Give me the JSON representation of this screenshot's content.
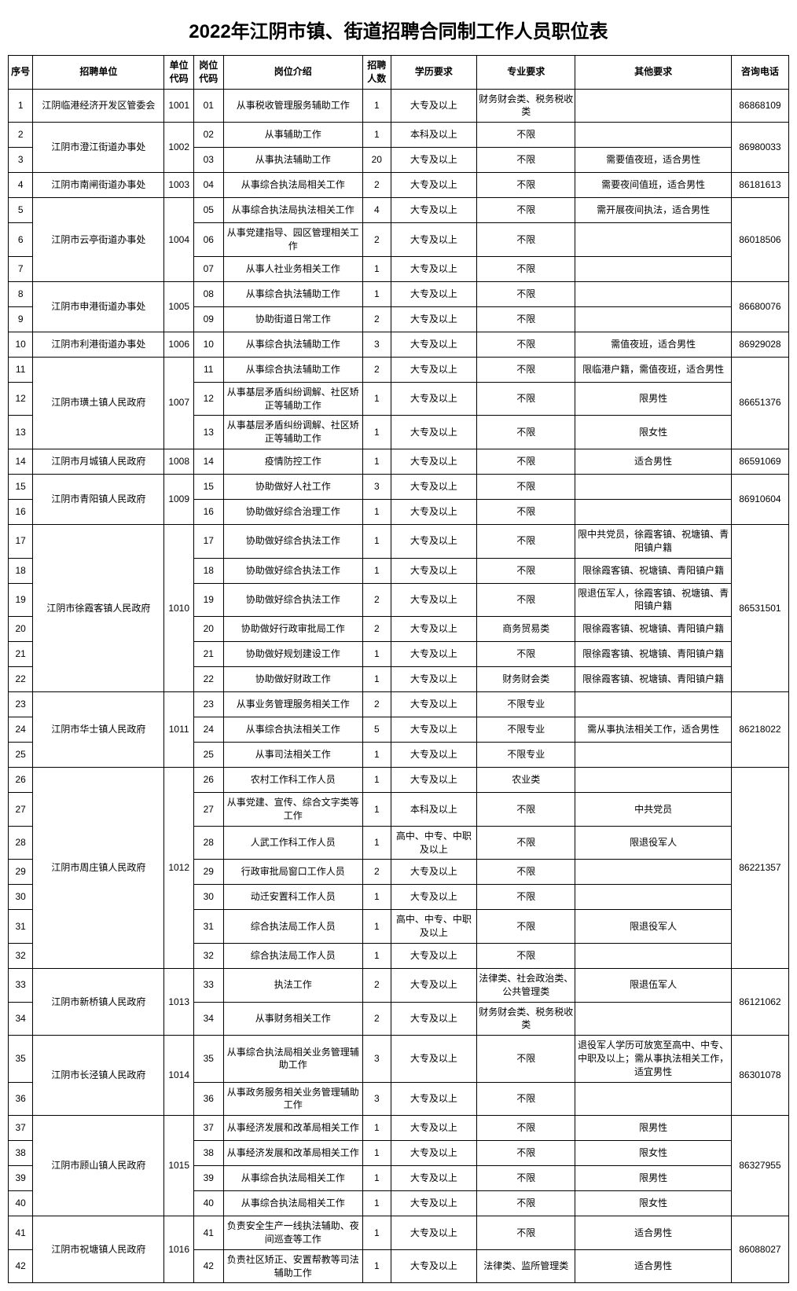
{
  "title": "2022年江阴市镇、街道招聘合同制工作人员职位表",
  "columns": [
    "序号",
    "招聘单位",
    "单位代码",
    "岗位代码",
    "岗位介绍",
    "招聘人数",
    "学历要求",
    "专业要求",
    "其他要求",
    "咨询电话"
  ],
  "rows": [
    {
      "seq": "1",
      "pcode": "01",
      "desc": "从事税收管理服务辅助工作",
      "num": "1",
      "edu": "大专及以上",
      "major": "财务财会类、税务税收类",
      "other": "",
      "unit": "江阴临港经济开发区管委会",
      "ucode": "1001",
      "urs": 1,
      "phone": "86868109",
      "prs": 1
    },
    {
      "seq": "2",
      "pcode": "02",
      "desc": "从事辅助工作",
      "num": "1",
      "edu": "本科及以上",
      "major": "不限",
      "other": "",
      "unit": "江阴市澄江街道办事处",
      "ucode": "1002",
      "urs": 2,
      "phone": "86980033",
      "prs": 2
    },
    {
      "seq": "3",
      "pcode": "03",
      "desc": "从事执法辅助工作",
      "num": "20",
      "edu": "大专及以上",
      "major": "不限",
      "other": "需要值夜班，适合男性"
    },
    {
      "seq": "4",
      "pcode": "04",
      "desc": "从事综合执法局相关工作",
      "num": "2",
      "edu": "大专及以上",
      "major": "不限",
      "other": "需要夜间值班，适合男性",
      "unit": "江阴市南闸街道办事处",
      "ucode": "1003",
      "urs": 1,
      "phone": "86181613",
      "prs": 1
    },
    {
      "seq": "5",
      "pcode": "05",
      "desc": "从事综合执法局执法相关工作",
      "num": "4",
      "edu": "大专及以上",
      "major": "不限",
      "other": "需开展夜间执法，适合男性",
      "unit": "江阴市云亭街道办事处",
      "ucode": "1004",
      "urs": 3,
      "phone": "86018506",
      "prs": 3
    },
    {
      "seq": "6",
      "pcode": "06",
      "desc": "从事党建指导、园区管理相关工作",
      "num": "2",
      "edu": "大专及以上",
      "major": "不限",
      "other": ""
    },
    {
      "seq": "7",
      "pcode": "07",
      "desc": "从事人社业务相关工作",
      "num": "1",
      "edu": "大专及以上",
      "major": "不限",
      "other": ""
    },
    {
      "seq": "8",
      "pcode": "08",
      "desc": "从事综合执法辅助工作",
      "num": "1",
      "edu": "大专及以上",
      "major": "不限",
      "other": "",
      "unit": "江阴市申港街道办事处",
      "ucode": "1005",
      "urs": 2,
      "phone": "86680076",
      "prs": 2
    },
    {
      "seq": "9",
      "pcode": "09",
      "desc": "协助街道日常工作",
      "num": "2",
      "edu": "大专及以上",
      "major": "不限",
      "other": ""
    },
    {
      "seq": "10",
      "pcode": "10",
      "desc": "从事综合执法辅助工作",
      "num": "3",
      "edu": "大专及以上",
      "major": "不限",
      "other": "需值夜班，适合男性",
      "unit": "江阴市利港街道办事处",
      "ucode": "1006",
      "urs": 1,
      "phone": "86929028",
      "prs": 1
    },
    {
      "seq": "11",
      "pcode": "11",
      "desc": "从事综合执法辅助工作",
      "num": "2",
      "edu": "大专及以上",
      "major": "不限",
      "other": "限临港户籍，需值夜班，适合男性",
      "unit": "江阴市璜土镇人民政府",
      "ucode": "1007",
      "urs": 3,
      "phone": "86651376",
      "prs": 3
    },
    {
      "seq": "12",
      "pcode": "12",
      "desc": "从事基层矛盾纠纷调解、社区矫正等辅助工作",
      "num": "1",
      "edu": "大专及以上",
      "major": "不限",
      "other": "限男性"
    },
    {
      "seq": "13",
      "pcode": "13",
      "desc": "从事基层矛盾纠纷调解、社区矫正等辅助工作",
      "num": "1",
      "edu": "大专及以上",
      "major": "不限",
      "other": "限女性"
    },
    {
      "seq": "14",
      "pcode": "14",
      "desc": "疫情防控工作",
      "num": "1",
      "edu": "大专及以上",
      "major": "不限",
      "other": "适合男性",
      "unit": "江阴市月城镇人民政府",
      "ucode": "1008",
      "urs": 1,
      "phone": "86591069",
      "prs": 1
    },
    {
      "seq": "15",
      "pcode": "15",
      "desc": "协助做好人社工作",
      "num": "3",
      "edu": "大专及以上",
      "major": "不限",
      "other": "",
      "unit": "江阴市青阳镇人民政府",
      "ucode": "1009",
      "urs": 2,
      "phone": "86910604",
      "prs": 2
    },
    {
      "seq": "16",
      "pcode": "16",
      "desc": "协助做好综合治理工作",
      "num": "1",
      "edu": "大专及以上",
      "major": "不限",
      "other": ""
    },
    {
      "seq": "17",
      "pcode": "17",
      "desc": "协助做好综合执法工作",
      "num": "1",
      "edu": "大专及以上",
      "major": "不限",
      "other": "限中共党员，徐霞客镇、祝塘镇、青阳镇户籍",
      "unit": "江阴市徐霞客镇人民政府",
      "ucode": "1010",
      "urs": 6,
      "phone": "86531501",
      "prs": 6
    },
    {
      "seq": "18",
      "pcode": "18",
      "desc": "协助做好综合执法工作",
      "num": "1",
      "edu": "大专及以上",
      "major": "不限",
      "other": "限徐霞客镇、祝塘镇、青阳镇户籍"
    },
    {
      "seq": "19",
      "pcode": "19",
      "desc": "协助做好综合执法工作",
      "num": "2",
      "edu": "大专及以上",
      "major": "不限",
      "other": "限退伍军人，徐霞客镇、祝塘镇、青阳镇户籍"
    },
    {
      "seq": "20",
      "pcode": "20",
      "desc": "协助做好行政审批局工作",
      "num": "2",
      "edu": "大专及以上",
      "major": "商务贸易类",
      "other": "限徐霞客镇、祝塘镇、青阳镇户籍"
    },
    {
      "seq": "21",
      "pcode": "21",
      "desc": "协助做好规划建设工作",
      "num": "1",
      "edu": "大专及以上",
      "major": "不限",
      "other": "限徐霞客镇、祝塘镇、青阳镇户籍"
    },
    {
      "seq": "22",
      "pcode": "22",
      "desc": "协助做好财政工作",
      "num": "1",
      "edu": "大专及以上",
      "major": "财务财会类",
      "other": "限徐霞客镇、祝塘镇、青阳镇户籍"
    },
    {
      "seq": "23",
      "pcode": "23",
      "desc": "从事业务管理服务相关工作",
      "num": "2",
      "edu": "大专及以上",
      "major": "不限专业",
      "other": "",
      "unit": "江阴市华士镇人民政府",
      "ucode": "1011",
      "urs": 3,
      "phone": "86218022",
      "prs": 3
    },
    {
      "seq": "24",
      "pcode": "24",
      "desc": "从事综合执法相关工作",
      "num": "5",
      "edu": "大专及以上",
      "major": "不限专业",
      "other": "需从事执法相关工作，适合男性"
    },
    {
      "seq": "25",
      "pcode": "25",
      "desc": "从事司法相关工作",
      "num": "1",
      "edu": "大专及以上",
      "major": "不限专业",
      "other": ""
    },
    {
      "seq": "26",
      "pcode": "26",
      "desc": "农村工作科工作人员",
      "num": "1",
      "edu": "大专及以上",
      "major": "农业类",
      "other": "",
      "unit": "江阴市周庄镇人民政府",
      "ucode": "1012",
      "urs": 7,
      "phone": "86221357",
      "prs": 7
    },
    {
      "seq": "27",
      "pcode": "27",
      "desc": "从事党建、宣传、综合文字类等工作",
      "num": "1",
      "edu": "本科及以上",
      "major": "不限",
      "other": "中共党员"
    },
    {
      "seq": "28",
      "pcode": "28",
      "desc": "人武工作科工作人员",
      "num": "1",
      "edu": "高中、中专、中职及以上",
      "major": "不限",
      "other": "限退役军人"
    },
    {
      "seq": "29",
      "pcode": "29",
      "desc": "行政审批局窗口工作人员",
      "num": "2",
      "edu": "大专及以上",
      "major": "不限",
      "other": ""
    },
    {
      "seq": "30",
      "pcode": "30",
      "desc": "动迁安置科工作人员",
      "num": "1",
      "edu": "大专及以上",
      "major": "不限",
      "other": ""
    },
    {
      "seq": "31",
      "pcode": "31",
      "desc": "综合执法局工作人员",
      "num": "1",
      "edu": "高中、中专、中职及以上",
      "major": "不限",
      "other": "限退役军人"
    },
    {
      "seq": "32",
      "pcode": "32",
      "desc": "综合执法局工作人员",
      "num": "1",
      "edu": "大专及以上",
      "major": "不限",
      "other": ""
    },
    {
      "seq": "33",
      "pcode": "33",
      "desc": "执法工作",
      "num": "2",
      "edu": "大专及以上",
      "major": "法律类、社会政治类、公共管理类",
      "other": "限退伍军人",
      "unit": "江阴市新桥镇人民政府",
      "ucode": "1013",
      "urs": 2,
      "phone": "86121062",
      "prs": 2
    },
    {
      "seq": "34",
      "pcode": "34",
      "desc": "从事财务相关工作",
      "num": "2",
      "edu": "大专及以上",
      "major": "财务财会类、税务税收类",
      "other": ""
    },
    {
      "seq": "35",
      "pcode": "35",
      "desc": "从事综合执法局相关业务管理辅助工作",
      "num": "3",
      "edu": "大专及以上",
      "major": "不限",
      "other": "退役军人学历可放宽至高中、中专、中职及以上；需从事执法相关工作，适宜男性",
      "unit": "江阴市长泾镇人民政府",
      "ucode": "1014",
      "urs": 2,
      "phone": "86301078",
      "prs": 2
    },
    {
      "seq": "36",
      "pcode": "36",
      "desc": "从事政务服务相关业务管理辅助工作",
      "num": "3",
      "edu": "大专及以上",
      "major": "不限",
      "other": ""
    },
    {
      "seq": "37",
      "pcode": "37",
      "desc": "从事经济发展和改革局相关工作",
      "num": "1",
      "edu": "大专及以上",
      "major": "不限",
      "other": "限男性",
      "unit": "江阴市顾山镇人民政府",
      "ucode": "1015",
      "urs": 4,
      "phone": "86327955",
      "prs": 4
    },
    {
      "seq": "38",
      "pcode": "38",
      "desc": "从事经济发展和改革局相关工作",
      "num": "1",
      "edu": "大专及以上",
      "major": "不限",
      "other": "限女性"
    },
    {
      "seq": "39",
      "pcode": "39",
      "desc": "从事综合执法局相关工作",
      "num": "1",
      "edu": "大专及以上",
      "major": "不限",
      "other": "限男性"
    },
    {
      "seq": "40",
      "pcode": "40",
      "desc": "从事综合执法局相关工作",
      "num": "1",
      "edu": "大专及以上",
      "major": "不限",
      "other": "限女性"
    },
    {
      "seq": "41",
      "pcode": "41",
      "desc": "负责安全生产一线执法辅助、夜间巡查等工作",
      "num": "1",
      "edu": "大专及以上",
      "major": "不限",
      "other": "适合男性",
      "unit": "江阴市祝塘镇人民政府",
      "ucode": "1016",
      "urs": 2,
      "phone": "86088027",
      "prs": 2
    },
    {
      "seq": "42",
      "pcode": "42",
      "desc": "负责社区矫正、安置帮教等司法辅助工作",
      "num": "1",
      "edu": "大专及以上",
      "major": "法律类、监所管理类",
      "other": "适合男性"
    }
  ]
}
